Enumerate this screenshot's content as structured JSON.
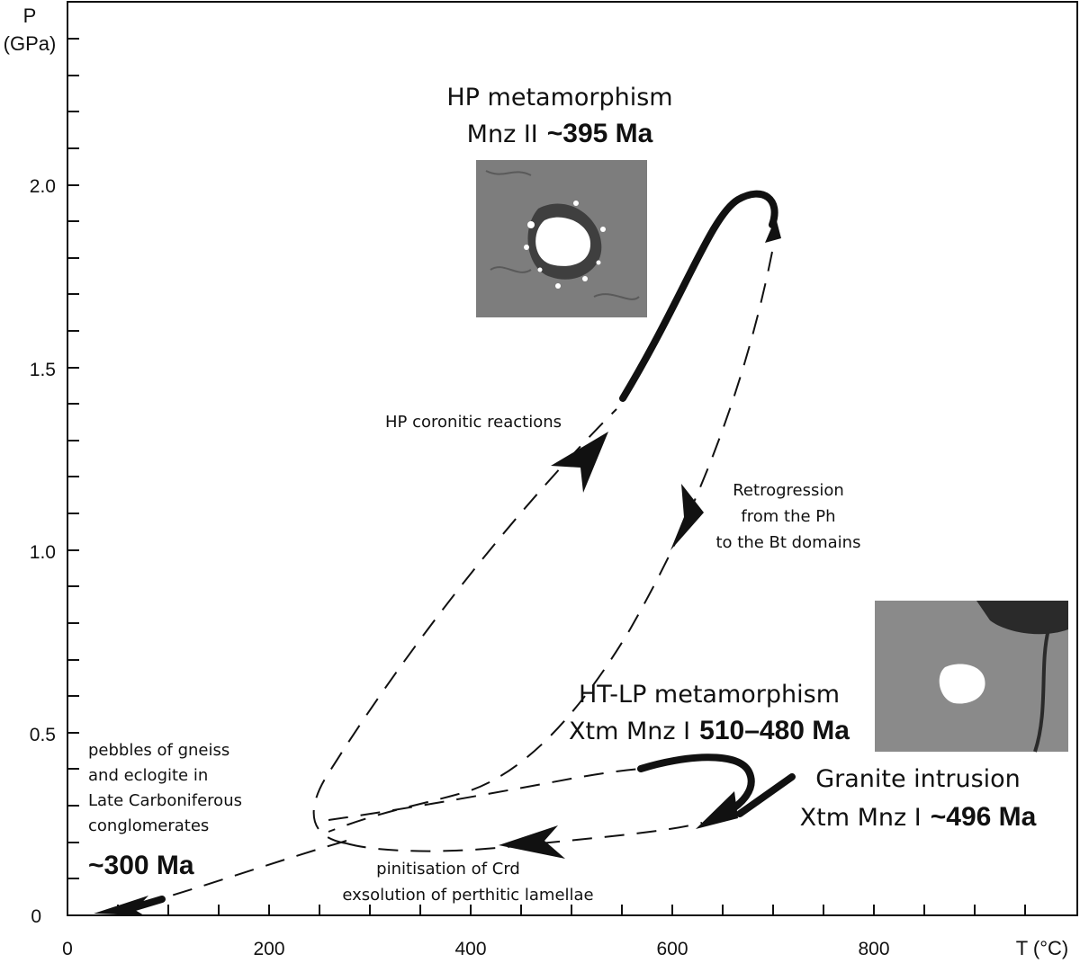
{
  "axes": {
    "y_label_top": "P",
    "y_label_unit": "(GPa)",
    "x_label": "T (°C)",
    "x_ticks": [
      "0",
      "200",
      "400",
      "600",
      "800"
    ],
    "y_ticks": [
      "0",
      "0.5",
      "1.0",
      "1.5",
      "2.0"
    ]
  },
  "labels": {
    "hp_title": "HP metamorphism",
    "hp_mineral": "Mnz II",
    "hp_age": "~395 Ma",
    "hp_reactions": "HP coronitic reactions",
    "retro_1": "Retrogression",
    "retro_2": "from the Ph",
    "retro_3": "to the Bt domains",
    "htlp_title": "HT-LP metamorphism",
    "htlp_mineral": "Xtm Mnz I",
    "htlp_age": "510–480 Ma",
    "granite_title": "Granite intrusion",
    "granite_mineral": "Xtm Mnz I",
    "granite_age": "~496 Ma",
    "pebbles_1": "pebbles of gneiss",
    "pebbles_2": "and eclogite in",
    "pebbles_3": "Late Carboniferous",
    "pebbles_4": "conglomerates",
    "pebbles_age": "~300 Ma",
    "pinit_1": "pinitisation of Crd",
    "pinit_2": "exsolution of perthitic lamellae"
  },
  "colors": {
    "line": "#111111",
    "photo_matrix": "#7d7d7d",
    "photo_grain": "#ffffff"
  }
}
